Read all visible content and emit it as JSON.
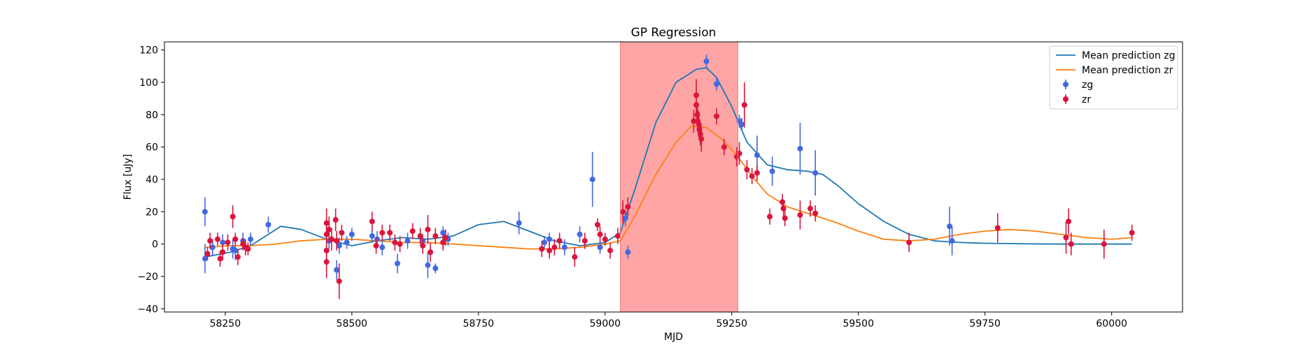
{
  "chart_data": {
    "type": "scatter",
    "title": "GP Regression",
    "xlabel": "MJD",
    "ylabel": "Flux [uJy]",
    "xlim": [
      58130,
      60140
    ],
    "ylim": [
      -42,
      125
    ],
    "xticks": [
      58250,
      58500,
      58750,
      59000,
      59250,
      59500,
      59750,
      60000
    ],
    "yticks": [
      -40,
      -20,
      0,
      20,
      40,
      60,
      80,
      100,
      120
    ],
    "grid": false,
    "legend_position": "top-right",
    "shaded_region": {
      "x": [
        59030,
        59262
      ],
      "color": "#ffa5a5"
    },
    "series": [
      {
        "name": "Mean prediction zg",
        "kind": "line",
        "color": "#1f77b4",
        "x": [
          58210,
          58260,
          58300,
          58330,
          58360,
          58400,
          58450,
          58500,
          58550,
          58600,
          58650,
          58700,
          58750,
          58800,
          58850,
          58900,
          58950,
          59000,
          59030,
          59060,
          59100,
          59140,
          59180,
          59200,
          59220,
          59250,
          59280,
          59320,
          59360,
          59400,
          59430,
          59460,
          59500,
          59550,
          59600,
          59650,
          59700,
          59750,
          59800,
          59850,
          59900,
          59950,
          60000,
          60040
        ],
        "y": [
          -8,
          -5,
          -1,
          5,
          11,
          9,
          3,
          -1,
          2,
          4,
          3,
          5,
          12,
          14,
          8,
          2,
          -1,
          1,
          7,
          35,
          75,
          100,
          108,
          109,
          103,
          85,
          63,
          49,
          46,
          45,
          43,
          36,
          25,
          14,
          6,
          2,
          1,
          0.5,
          0.3,
          0.1,
          0,
          0,
          0,
          0
        ]
      },
      {
        "name": "Mean prediction zr",
        "kind": "line",
        "color": "#ff7f0e",
        "x": [
          58210,
          58260,
          58300,
          58350,
          58400,
          58450,
          58500,
          58550,
          58600,
          58650,
          58700,
          58750,
          58800,
          58850,
          58900,
          58950,
          59000,
          59030,
          59060,
          59100,
          59140,
          59170,
          59200,
          59230,
          59260,
          59290,
          59320,
          59360,
          59400,
          59450,
          59500,
          59550,
          59600,
          59650,
          59700,
          59750,
          59800,
          59850,
          59900,
          59950,
          60000,
          60040
        ],
        "y": [
          -2,
          -1,
          -1,
          0,
          2,
          3,
          3,
          2,
          1,
          1,
          0,
          -1,
          -2,
          -3,
          -3,
          -2,
          0,
          2,
          18,
          43,
          63,
          73,
          72,
          65,
          55,
          42,
          31,
          23,
          19,
          14,
          8,
          3,
          2,
          3,
          6,
          8,
          9,
          8,
          6,
          4,
          3,
          4
        ]
      },
      {
        "name": "zg",
        "kind": "errorbar",
        "color": "#4169e1",
        "points": [
          {
            "x": 58210,
            "y": 20,
            "err": 9
          },
          {
            "x": 58210,
            "y": -9,
            "err": 9
          },
          {
            "x": 58225,
            "y": -2,
            "err": 5
          },
          {
            "x": 58245,
            "y": 1,
            "err": 5
          },
          {
            "x": 58265,
            "y": -3,
            "err": 6
          },
          {
            "x": 58270,
            "y": -4,
            "err": 6
          },
          {
            "x": 58285,
            "y": 2,
            "err": 5
          },
          {
            "x": 58300,
            "y": 3,
            "err": 4
          },
          {
            "x": 58335,
            "y": 12,
            "err": 5
          },
          {
            "x": 58455,
            "y": 2,
            "err": 5
          },
          {
            "x": 58470,
            "y": -16,
            "err": 6
          },
          {
            "x": 58475,
            "y": -1,
            "err": 5
          },
          {
            "x": 58490,
            "y": 1,
            "err": 4
          },
          {
            "x": 58500,
            "y": 6,
            "err": 4
          },
          {
            "x": 58540,
            "y": 5,
            "err": 4
          },
          {
            "x": 58550,
            "y": 3,
            "err": 5
          },
          {
            "x": 58560,
            "y": -2,
            "err": 5
          },
          {
            "x": 58590,
            "y": -12,
            "err": 6
          },
          {
            "x": 58610,
            "y": 2,
            "err": 5
          },
          {
            "x": 58640,
            "y": 2,
            "err": 4
          },
          {
            "x": 58650,
            "y": -13,
            "err": 8
          },
          {
            "x": 58665,
            "y": -15,
            "err": 3
          },
          {
            "x": 58680,
            "y": 7,
            "err": 4
          },
          {
            "x": 58690,
            "y": 3,
            "err": 4
          },
          {
            "x": 58830,
            "y": 13,
            "err": 7
          },
          {
            "x": 58880,
            "y": 1,
            "err": 4
          },
          {
            "x": 58890,
            "y": 3,
            "err": 4
          },
          {
            "x": 58920,
            "y": -2,
            "err": 5
          },
          {
            "x": 58950,
            "y": 6,
            "err": 5
          },
          {
            "x": 58975,
            "y": 40,
            "err": 17
          },
          {
            "x": 58990,
            "y": -2,
            "err": 4
          },
          {
            "x": 59040,
            "y": 16,
            "err": 5
          },
          {
            "x": 59045,
            "y": -5,
            "err": 4
          },
          {
            "x": 59200,
            "y": 113,
            "err": 4
          },
          {
            "x": 59220,
            "y": 99,
            "err": 4
          },
          {
            "x": 59265,
            "y": 76,
            "err": 4
          },
          {
            "x": 59270,
            "y": 74,
            "err": 4
          },
          {
            "x": 59300,
            "y": 55,
            "err": 12
          },
          {
            "x": 59330,
            "y": 45,
            "err": 9
          },
          {
            "x": 59385,
            "y": 59,
            "err": 16
          },
          {
            "x": 59415,
            "y": 44,
            "err": 14
          },
          {
            "x": 59680,
            "y": 11,
            "err": 12
          },
          {
            "x": 59685,
            "y": 2,
            "err": 9
          }
        ]
      },
      {
        "name": "zr",
        "kind": "errorbar",
        "color": "#dc143c",
        "points": [
          {
            "x": 58215,
            "y": -6,
            "err": 4
          },
          {
            "x": 58220,
            "y": 2,
            "err": 5
          },
          {
            "x": 58235,
            "y": 3,
            "err": 4
          },
          {
            "x": 58240,
            "y": -9,
            "err": 5
          },
          {
            "x": 58245,
            "y": -5,
            "err": 5
          },
          {
            "x": 58255,
            "y": 1,
            "err": 5
          },
          {
            "x": 58265,
            "y": 17,
            "err": 7
          },
          {
            "x": 58270,
            "y": 3,
            "err": 4
          },
          {
            "x": 58275,
            "y": -8,
            "err": 5
          },
          {
            "x": 58285,
            "y": 0,
            "err": 4
          },
          {
            "x": 58290,
            "y": -2,
            "err": 5
          },
          {
            "x": 58295,
            "y": -3,
            "err": 4
          },
          {
            "x": 58450,
            "y": 13,
            "err": 9
          },
          {
            "x": 58450,
            "y": 6,
            "err": 8
          },
          {
            "x": 58450,
            "y": -4,
            "err": 9
          },
          {
            "x": 58450,
            "y": -11,
            "err": 10
          },
          {
            "x": 58455,
            "y": 9,
            "err": 8
          },
          {
            "x": 58460,
            "y": 3,
            "err": 7
          },
          {
            "x": 58468,
            "y": 15,
            "err": 7
          },
          {
            "x": 58470,
            "y": 2,
            "err": 6
          },
          {
            "x": 58475,
            "y": -23,
            "err": 11
          },
          {
            "x": 58480,
            "y": 7,
            "err": 5
          },
          {
            "x": 58540,
            "y": 14,
            "err": 6
          },
          {
            "x": 58548,
            "y": -1,
            "err": 5
          },
          {
            "x": 58560,
            "y": 7,
            "err": 5
          },
          {
            "x": 58575,
            "y": 7,
            "err": 5
          },
          {
            "x": 58585,
            "y": 1,
            "err": 5
          },
          {
            "x": 58595,
            "y": 0,
            "err": 5
          },
          {
            "x": 58620,
            "y": 8,
            "err": 5
          },
          {
            "x": 58635,
            "y": 5,
            "err": 5
          },
          {
            "x": 58640,
            "y": -1,
            "err": 5
          },
          {
            "x": 58650,
            "y": 9,
            "err": 9
          },
          {
            "x": 58655,
            "y": -5,
            "err": 6
          },
          {
            "x": 58665,
            "y": 5,
            "err": 5
          },
          {
            "x": 58680,
            "y": 1,
            "err": 5
          },
          {
            "x": 58685,
            "y": 4,
            "err": 5
          },
          {
            "x": 58875,
            "y": -3,
            "err": 5
          },
          {
            "x": 58890,
            "y": -4,
            "err": 5
          },
          {
            "x": 58900,
            "y": -2,
            "err": 5
          },
          {
            "x": 58910,
            "y": 2,
            "err": 5
          },
          {
            "x": 58940,
            "y": -8,
            "err": 6
          },
          {
            "x": 58960,
            "y": 2,
            "err": 5
          },
          {
            "x": 58985,
            "y": 12,
            "err": 4
          },
          {
            "x": 58990,
            "y": 6,
            "err": 5
          },
          {
            "x": 59000,
            "y": 3,
            "err": 4
          },
          {
            "x": 59010,
            "y": -4,
            "err": 5
          },
          {
            "x": 59025,
            "y": 5,
            "err": 5
          },
          {
            "x": 59035,
            "y": 20,
            "err": 7
          },
          {
            "x": 59045,
            "y": 23,
            "err": 6
          },
          {
            "x": 59180,
            "y": 92,
            "err": 10
          },
          {
            "x": 59180,
            "y": 86,
            "err": 8
          },
          {
            "x": 59182,
            "y": 80,
            "err": 7
          },
          {
            "x": 59183,
            "y": 76,
            "err": 7
          },
          {
            "x": 59185,
            "y": 74,
            "err": 8
          },
          {
            "x": 59186,
            "y": 71,
            "err": 6
          },
          {
            "x": 59188,
            "y": 68,
            "err": 7
          },
          {
            "x": 59190,
            "y": 65,
            "err": 8
          },
          {
            "x": 59175,
            "y": 76,
            "err": 7
          },
          {
            "x": 59220,
            "y": 79,
            "err": 5
          },
          {
            "x": 59235,
            "y": 60,
            "err": 5
          },
          {
            "x": 59260,
            "y": 54,
            "err": 6
          },
          {
            "x": 59265,
            "y": 56,
            "err": 7
          },
          {
            "x": 59275,
            "y": 86,
            "err": 14
          },
          {
            "x": 59280,
            "y": 46,
            "err": 6
          },
          {
            "x": 59290,
            "y": 42,
            "err": 5
          },
          {
            "x": 59300,
            "y": 44,
            "err": 5
          },
          {
            "x": 59325,
            "y": 17,
            "err": 5
          },
          {
            "x": 59350,
            "y": 26,
            "err": 5
          },
          {
            "x": 59352,
            "y": 22,
            "err": 5
          },
          {
            "x": 59355,
            "y": 16,
            "err": 5
          },
          {
            "x": 59385,
            "y": 18,
            "err": 9
          },
          {
            "x": 59405,
            "y": 22,
            "err": 5
          },
          {
            "x": 59415,
            "y": 19,
            "err": 5
          },
          {
            "x": 59600,
            "y": 1,
            "err": 6
          },
          {
            "x": 59775,
            "y": 10,
            "err": 9
          },
          {
            "x": 59910,
            "y": 4,
            "err": 10
          },
          {
            "x": 59915,
            "y": 14,
            "err": 8
          },
          {
            "x": 59920,
            "y": 0,
            "err": 7
          },
          {
            "x": 59985,
            "y": 0,
            "err": 9
          },
          {
            "x": 60040,
            "y": 7,
            "err": 5
          }
        ]
      }
    ]
  }
}
